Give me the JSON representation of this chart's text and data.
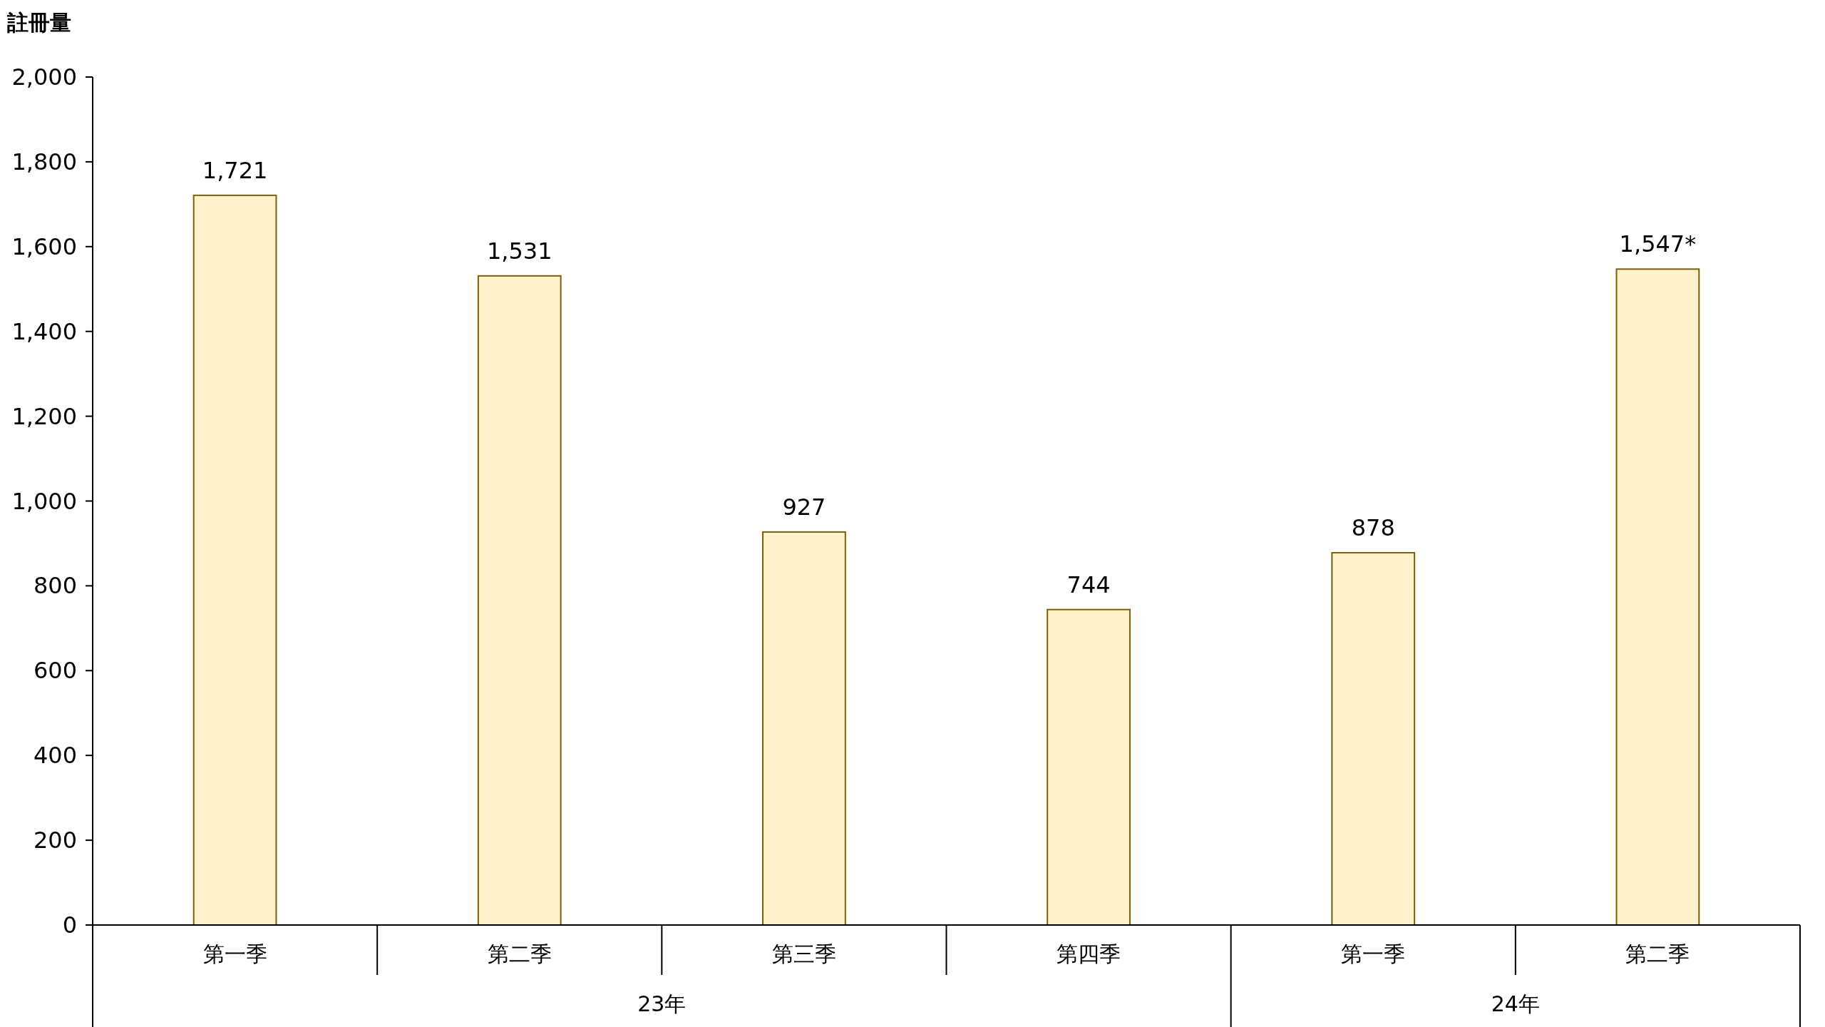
{
  "chart_data": {
    "type": "bar",
    "ylabel": "註冊量",
    "categories": [
      "第一季",
      "第二季",
      "第三季",
      "第四季",
      "第一季",
      "第二季"
    ],
    "values": [
      1721,
      1531,
      927,
      744,
      878,
      1547
    ],
    "value_labels": [
      "1,721",
      "1,531",
      "927",
      "744",
      "878",
      "1,547*"
    ],
    "color": "#fff2cc",
    "ylim": [
      0,
      2000
    ],
    "yticks": [
      {
        "value": 0,
        "label": "0"
      },
      {
        "value": 200,
        "label": "200"
      },
      {
        "value": 400,
        "label": "400"
      },
      {
        "value": 600,
        "label": "600"
      },
      {
        "value": 800,
        "label": "800"
      },
      {
        "value": 1000,
        "label": "1,000"
      },
      {
        "value": 1200,
        "label": "1,200"
      },
      {
        "value": 1400,
        "label": "1,400"
      },
      {
        "value": 1600,
        "label": "1,600"
      },
      {
        "value": 1800,
        "label": "1,800"
      },
      {
        "value": 2000,
        "label": "2,000"
      }
    ],
    "annotations": [
      "23年",
      "24年"
    ]
  }
}
